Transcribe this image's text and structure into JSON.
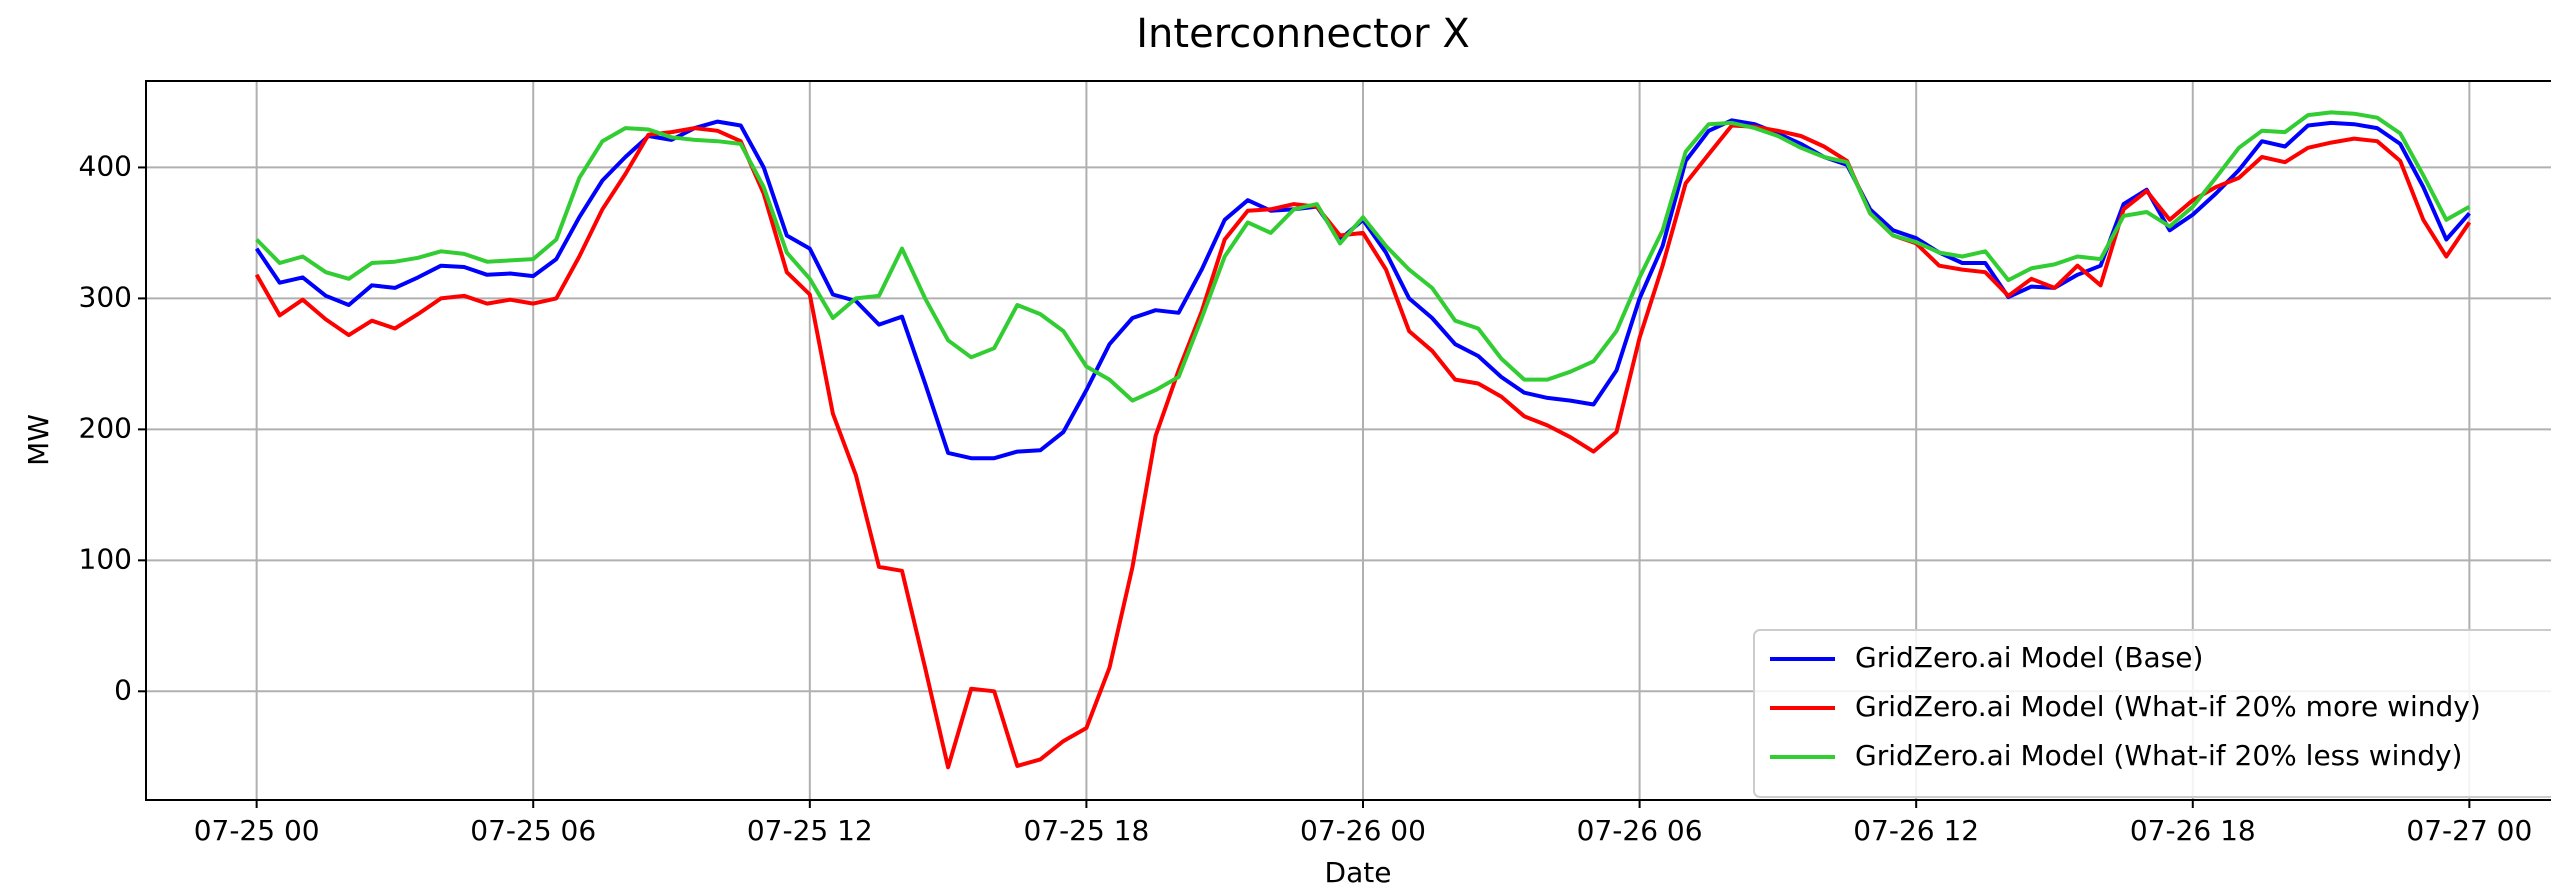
{
  "chart_data": {
    "type": "line",
    "title": "Interconnector X",
    "xlabel": "Date",
    "ylabel": "MW",
    "x": [
      "07-25 00:00",
      "07-25 00:30",
      "07-25 01:00",
      "07-25 01:30",
      "07-25 02:00",
      "07-25 02:30",
      "07-25 03:00",
      "07-25 03:30",
      "07-25 04:00",
      "07-25 04:30",
      "07-25 05:00",
      "07-25 05:30",
      "07-25 06:00",
      "07-25 06:30",
      "07-25 07:00",
      "07-25 07:30",
      "07-25 08:00",
      "07-25 08:30",
      "07-25 09:00",
      "07-25 09:30",
      "07-25 10:00",
      "07-25 10:30",
      "07-25 11:00",
      "07-25 11:30",
      "07-25 12:00",
      "07-25 12:30",
      "07-25 13:00",
      "07-25 13:30",
      "07-25 14:00",
      "07-25 14:30",
      "07-25 15:00",
      "07-25 15:30",
      "07-25 16:00",
      "07-25 16:30",
      "07-25 17:00",
      "07-25 17:30",
      "07-25 18:00",
      "07-25 18:30",
      "07-25 19:00",
      "07-25 19:30",
      "07-25 20:00",
      "07-25 20:30",
      "07-25 21:00",
      "07-25 21:30",
      "07-25 22:00",
      "07-25 22:30",
      "07-25 23:00",
      "07-25 23:30",
      "07-26 00:00",
      "07-26 00:30",
      "07-26 01:00",
      "07-26 01:30",
      "07-26 02:00",
      "07-26 02:30",
      "07-26 03:00",
      "07-26 03:30",
      "07-26 04:00",
      "07-26 04:30",
      "07-26 05:00",
      "07-26 05:30",
      "07-26 06:00",
      "07-26 06:30",
      "07-26 07:00",
      "07-26 07:30",
      "07-26 08:00",
      "07-26 08:30",
      "07-26 09:00",
      "07-26 09:30",
      "07-26 10:00",
      "07-26 10:30",
      "07-26 11:00",
      "07-26 11:30",
      "07-26 12:00",
      "07-26 12:30",
      "07-26 13:00",
      "07-26 13:30",
      "07-26 14:00",
      "07-26 14:30",
      "07-26 15:00",
      "07-26 15:30",
      "07-26 16:00",
      "07-26 16:30",
      "07-26 17:00",
      "07-26 17:30",
      "07-26 18:00",
      "07-26 18:30",
      "07-26 19:00",
      "07-26 19:30",
      "07-26 20:00",
      "07-26 20:30",
      "07-26 21:00",
      "07-26 21:30",
      "07-26 22:00",
      "07-26 22:30",
      "07-26 23:00",
      "07-26 23:30",
      "07-27 00:00"
    ],
    "series": [
      {
        "name": "GridZero.ai Model (Base)",
        "color": "#0000ff",
        "values": [
          338,
          312,
          316,
          302,
          295,
          310,
          308,
          316,
          325,
          324,
          318,
          319,
          317,
          330,
          362,
          390,
          408,
          424,
          421,
          430,
          435,
          432,
          400,
          348,
          338,
          303,
          298,
          280,
          286,
          235,
          182,
          178,
          178,
          183,
          184,
          198,
          230,
          265,
          285,
          291,
          289,
          322,
          360,
          375,
          367,
          368,
          370,
          345,
          360,
          335,
          300,
          285,
          265,
          256,
          240,
          228,
          224,
          222,
          219,
          245,
          300,
          340,
          405,
          428,
          436,
          433,
          426,
          418,
          408,
          402,
          368,
          352,
          346,
          335,
          327,
          327,
          301,
          309,
          308,
          318,
          325,
          372,
          383,
          352,
          364,
          380,
          398,
          420,
          416,
          432,
          434,
          433,
          430,
          418,
          385,
          345,
          365
        ]
      },
      {
        "name": "GridZero.ai Model (What-if 20% more windy)",
        "color": "#ff0000",
        "values": [
          318,
          287,
          299,
          284,
          272,
          283,
          277,
          288,
          300,
          302,
          296,
          299,
          296,
          300,
          332,
          368,
          395,
          425,
          427,
          430,
          428,
          420,
          380,
          320,
          303,
          212,
          165,
          95,
          92,
          18,
          -58,
          2,
          0,
          -57,
          -52,
          -38,
          -28,
          18,
          95,
          195,
          245,
          290,
          345,
          367,
          368,
          372,
          370,
          348,
          350,
          322,
          275,
          260,
          238,
          235,
          225,
          210,
          203,
          194,
          183,
          198,
          270,
          325,
          388,
          410,
          432,
          431,
          428,
          424,
          416,
          405,
          365,
          348,
          342,
          325,
          322,
          320,
          302,
          315,
          308,
          325,
          310,
          368,
          382,
          360,
          375,
          385,
          392,
          408,
          404,
          415,
          419,
          422,
          420,
          405,
          360,
          332,
          358
        ]
      },
      {
        "name": "GridZero.ai Model (What-if 20% less windy)",
        "color": "#32cd32",
        "values": [
          345,
          327,
          332,
          320,
          315,
          327,
          328,
          331,
          336,
          334,
          328,
          329,
          330,
          345,
          392,
          420,
          430,
          429,
          423,
          421,
          420,
          418,
          385,
          335,
          315,
          285,
          300,
          302,
          338,
          300,
          268,
          255,
          262,
          295,
          288,
          275,
          248,
          238,
          222,
          230,
          240,
          285,
          332,
          358,
          350,
          368,
          372,
          342,
          362,
          340,
          322,
          308,
          283,
          277,
          254,
          238,
          238,
          244,
          252,
          275,
          316,
          352,
          412,
          433,
          434,
          430,
          424,
          415,
          408,
          404,
          365,
          348,
          343,
          335,
          332,
          336,
          314,
          323,
          326,
          332,
          330,
          363,
          366,
          355,
          370,
          392,
          415,
          428,
          427,
          440,
          442,
          441,
          438,
          426,
          394,
          360,
          370
        ]
      }
    ],
    "xlim": [
      "07-24 21:36",
      "07-27 02:24"
    ],
    "xticks": [
      "07-25 00",
      "07-25 06",
      "07-25 12",
      "07-25 18",
      "07-26 00",
      "07-26 06",
      "07-26 12",
      "07-26 18",
      "07-27 00"
    ],
    "ylim": [
      -83,
      466
    ],
    "yticks": [
      0,
      100,
      200,
      300,
      400
    ],
    "grid": true,
    "legend": "lower right"
  }
}
